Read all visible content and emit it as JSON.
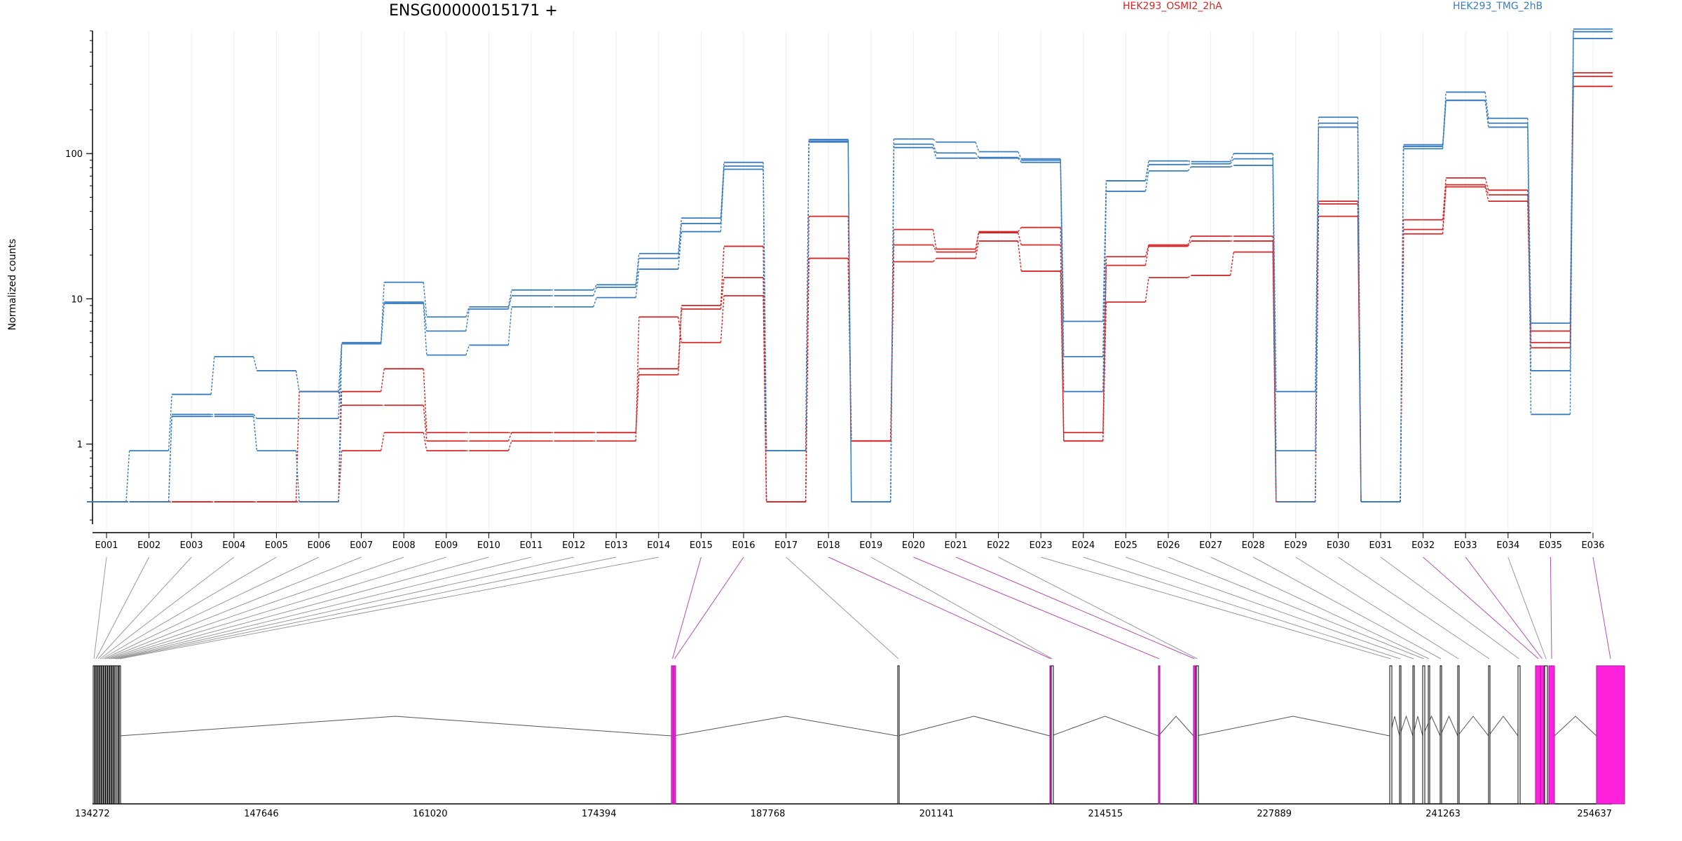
{
  "chart_data": {
    "type": "line",
    "title": "ENSG00000015171 +",
    "ylabel": "Normalized counts",
    "y_scale": "log",
    "ylim": [
      0.3,
      700
    ],
    "y_ticks": [
      {
        "value": 1,
        "label": "1"
      },
      {
        "value": 10,
        "label": "10"
      },
      {
        "value": 100,
        "label": "100"
      }
    ],
    "exons": [
      "E001",
      "E002",
      "E003",
      "E004",
      "E005",
      "E006",
      "E007",
      "E008",
      "E009",
      "E010",
      "E011",
      "E012",
      "E013",
      "E014",
      "E015",
      "E016",
      "E017",
      "E018",
      "E019",
      "E020",
      "E021",
      "E022",
      "E023",
      "E024",
      "E025",
      "E026",
      "E027",
      "E028",
      "E029",
      "E030",
      "E031",
      "E032",
      "E033",
      "E034",
      "E035",
      "E036"
    ],
    "highlighted_exons": [
      "E015",
      "E016",
      "E018",
      "E020",
      "E021",
      "E032",
      "E033",
      "E035",
      "E036"
    ],
    "colors": {
      "HEK293_OSMI2_2hA": "#d62728",
      "HEK293_TMG_2hB": "#3a7dbf",
      "highlight": "#ff22dd",
      "connector": "#999999",
      "connector_highlight": "#b050b0"
    },
    "legend": [
      {
        "name": "HEK293_OSMI2_2hA",
        "color": "#d62728"
      },
      {
        "name": "HEK293_TMG_2hB",
        "color": "#3a7dbf"
      }
    ],
    "series": [
      {
        "group": "HEK293_OSMI2_2hA",
        "values": [
          0.4,
          0.4,
          0.4,
          0.4,
          0.4,
          0.4,
          2.3,
          3.3,
          1.2,
          1.2,
          1.2,
          1.2,
          1.2,
          3.3,
          9.0,
          23.0,
          0.4,
          37.0,
          1.05,
          30.0,
          22.0,
          29.0,
          31.0,
          1.2,
          19.5,
          23.5,
          27.0,
          27.0,
          0.4,
          47.0,
          0.4,
          35.0,
          68.0,
          56.0,
          6.0,
          360
        ]
      },
      {
        "group": "HEK293_OSMI2_2hA",
        "values": [
          0.4,
          0.4,
          0.4,
          0.4,
          0.4,
          2.3,
          1.85,
          1.85,
          1.05,
          1.05,
          1.2,
          1.2,
          1.2,
          3.0,
          8.5,
          14.0,
          0.4,
          19.0,
          1.05,
          23.5,
          21.0,
          28.5,
          23.5,
          1.05,
          17.0,
          23.0,
          25.0,
          25.0,
          0.4,
          45.0,
          0.4,
          30.0,
          61.0,
          52.0,
          5.0,
          340
        ]
      },
      {
        "group": "HEK293_OSMI2_2hA",
        "values": [
          0.4,
          0.4,
          0.4,
          0.4,
          0.4,
          0.4,
          0.9,
          1.2,
          0.9,
          0.9,
          1.05,
          1.05,
          1.05,
          7.5,
          5.0,
          10.5,
          0.4,
          19.0,
          1.05,
          18.0,
          19.0,
          25.0,
          15.5,
          1.05,
          9.5,
          14.0,
          14.5,
          21.0,
          0.4,
          37.0,
          0.4,
          28.0,
          59.0,
          47.0,
          4.6,
          290
        ]
      },
      {
        "group": "HEK293_TMG_2hB",
        "values": [
          0.4,
          0.9,
          2.2,
          4.0,
          3.2,
          2.3,
          5.0,
          13.0,
          7.5,
          8.8,
          11.5,
          11.5,
          12.5,
          20.5,
          36.0,
          87.0,
          0.9,
          125,
          0.4,
          126,
          120,
          103,
          92.0,
          7.0,
          65.0,
          89.0,
          88.0,
          100,
          2.3,
          178,
          0.4,
          115,
          265,
          175,
          6.8,
          720
        ]
      },
      {
        "group": "HEK293_TMG_2hB",
        "values": [
          0.4,
          0.4,
          1.6,
          1.6,
          1.5,
          1.5,
          4.9,
          9.5,
          6.0,
          8.5,
          10.5,
          10.5,
          12.0,
          19.0,
          33.0,
          82.0,
          0.9,
          122,
          0.4,
          116,
          101,
          94.0,
          90.0,
          4.0,
          65.0,
          84.0,
          85.0,
          92.0,
          0.9,
          162,
          0.4,
          112,
          233,
          162,
          3.2,
          690
        ]
      },
      {
        "group": "HEK293_TMG_2hB",
        "values": [
          0.4,
          0.4,
          1.55,
          1.55,
          0.9,
          0.4,
          4.9,
          9.3,
          4.1,
          4.8,
          8.8,
          8.8,
          10.2,
          16.0,
          29.0,
          78.0,
          0.9,
          120,
          0.4,
          110,
          93.0,
          93.0,
          87.0,
          2.3,
          55.0,
          76.0,
          81.0,
          83.0,
          0.4,
          152,
          0.4,
          108,
          232,
          152,
          1.6,
          620
        ]
      }
    ],
    "genomic_axis": {
      "ticks": [
        "134272",
        "147646",
        "161020",
        "174394",
        "187768",
        "201141",
        "214515",
        "227889",
        "241263",
        "254637"
      ]
    }
  }
}
